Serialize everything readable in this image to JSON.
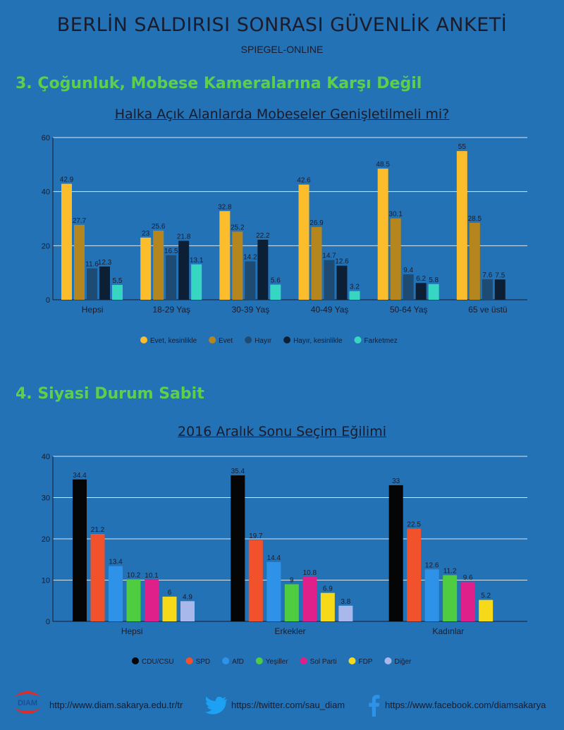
{
  "header": {
    "title": "BERLİN SALDIRISI SONRASI GÜVENLİK ANKETİ",
    "source": "SPIEGEL-ONLINE"
  },
  "section1": {
    "heading": "3. Çoğunluk, Mobese Kameralarına Karşı Değil"
  },
  "section2": {
    "heading": "4. Siyasi Durum Sabit"
  },
  "footer": {
    "website": "http://www.diam.sakarya.edu.tr/tr",
    "twitter": "https://twitter.com/sau_diam",
    "facebook": "https://www.facebook.com/diamsakarya",
    "logo_text": "DIAM"
  },
  "chart_data": [
    {
      "type": "bar",
      "title": "Halka Açık Alanlarda Mobeseler Genişletilmeli mi?",
      "categories": [
        "Hepsi",
        "18-29 Yaş",
        "30-39 Yaş",
        "40-49 Yaş",
        "50-64 Yaş",
        "65 ve üstü"
      ],
      "ylim": [
        0,
        60
      ],
      "yticks": [
        0,
        20,
        40,
        60
      ],
      "grid": true,
      "legend_position": "bottom",
      "series": [
        {
          "name": "Evet, kesinlikle",
          "color": "#fbbd2c",
          "values": [
            42.9,
            23,
            32.8,
            42.6,
            48.5,
            55
          ]
        },
        {
          "name": "Evet",
          "color": "#b5861d",
          "values": [
            27.7,
            25.6,
            25.2,
            26.9,
            30.1,
            28.5
          ]
        },
        {
          "name": "Hayır",
          "color": "#1e4b74",
          "values": [
            11.6,
            16.5,
            14.2,
            14.7,
            9.4,
            7.6
          ]
        },
        {
          "name": "Hayır, kesinlikle",
          "color": "#0d1f35",
          "values": [
            12.3,
            21.8,
            22.2,
            12.6,
            6.2,
            7.5
          ]
        },
        {
          "name": "Farketmez",
          "color": "#37d6c2",
          "values": [
            5.5,
            13.1,
            5.6,
            3.2,
            5.8,
            null
          ]
        }
      ]
    },
    {
      "type": "bar",
      "title": "2016 Aralık Sonu Seçim Eğilimi",
      "categories": [
        "Hepsi",
        "Erkekler",
        "Kadınlar"
      ],
      "ylim": [
        0,
        40
      ],
      "yticks": [
        0,
        10,
        20,
        30,
        40
      ],
      "grid": true,
      "legend_position": "bottom",
      "series": [
        {
          "name": "CDU/CSU",
          "color": "#050505",
          "values": [
            34.4,
            35.4,
            33
          ]
        },
        {
          "name": "SPD",
          "color": "#f1512b",
          "values": [
            21.2,
            19.7,
            22.5
          ]
        },
        {
          "name": "AfD",
          "color": "#2e93e8",
          "values": [
            13.4,
            14.4,
            12.6
          ]
        },
        {
          "name": "Yeşiller",
          "color": "#4fcc3f",
          "values": [
            10.2,
            9,
            11.2
          ]
        },
        {
          "name": "Sol Parti",
          "color": "#e0208a",
          "values": [
            10.1,
            10.8,
            9.6
          ]
        },
        {
          "name": "FDP",
          "color": "#f6da1a",
          "values": [
            6,
            6.9,
            5.2
          ]
        },
        {
          "name": "Diğer",
          "color": "#a9b8ea",
          "values": [
            4.9,
            3.8,
            null
          ]
        }
      ]
    }
  ]
}
